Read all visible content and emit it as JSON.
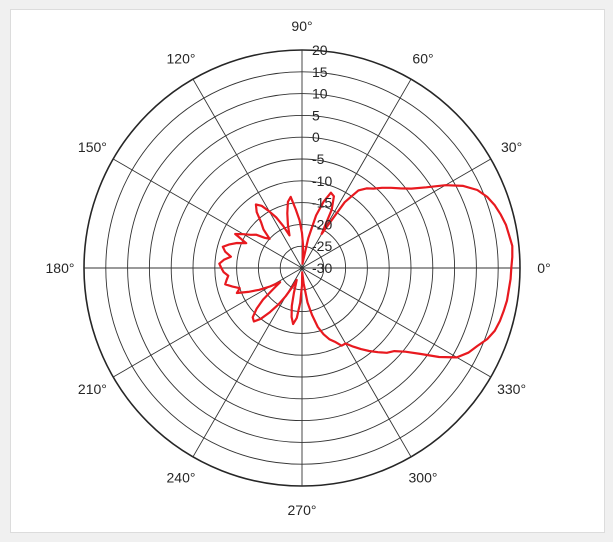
{
  "chart_data": {
    "type": "line",
    "projection": "polar",
    "title": "",
    "angle_ticks": [
      0,
      30,
      60,
      90,
      120,
      150,
      180,
      210,
      240,
      270,
      300,
      330
    ],
    "angle_labels": [
      "0°",
      "30°",
      "60°",
      "90°",
      "120°",
      "150°",
      "180°",
      "210°",
      "240°",
      "270°",
      "300°",
      "330°"
    ],
    "r_ticks": [
      -30,
      -25,
      -20,
      -15,
      -10,
      -5,
      0,
      5,
      10,
      15,
      20
    ],
    "r_labels": [
      "-30",
      "-25",
      "-20",
      "-15",
      "-10",
      "-5",
      "0",
      "5",
      "10",
      "15",
      "20"
    ],
    "rlim": [
      -30,
      20
    ],
    "grid": true,
    "series": [
      {
        "color": "#e8191f",
        "theta": [
          0,
          3,
          6,
          9,
          12,
          15,
          18,
          21,
          24,
          27,
          30,
          33,
          36,
          39,
          42,
          45,
          48,
          51,
          54,
          57,
          60,
          63,
          66,
          69,
          72,
          75,
          78,
          81,
          84,
          87,
          90,
          93,
          96,
          99,
          102,
          105,
          108,
          111,
          114,
          117,
          120,
          123,
          126,
          129,
          132,
          135,
          138,
          141,
          144,
          147,
          150,
          153,
          156,
          159,
          162,
          165,
          168,
          171,
          174,
          177,
          180,
          183,
          186,
          189,
          192,
          195,
          198,
          201,
          204,
          207,
          210,
          213,
          216,
          219,
          222,
          225,
          228,
          231,
          234,
          237,
          240,
          243,
          246,
          249,
          252,
          255,
          258,
          261,
          264,
          267,
          270,
          273,
          276,
          279,
          282,
          285,
          288,
          291,
          294,
          297,
          300,
          303,
          306,
          309,
          312,
          315,
          318,
          321,
          324,
          327,
          330,
          333,
          336,
          339,
          342,
          345,
          348,
          351,
          354,
          357,
          360
        ],
        "r": [
          18.0,
          18.3,
          18.5,
          18.1,
          17.8,
          17.2,
          16.5,
          15.5,
          14.0,
          11.5,
          8.0,
          4.0,
          1.0,
          -1.0,
          -2.5,
          -4.0,
          -5.5,
          -6.5,
          -8.0,
          -12.0,
          -21.0,
          -15.0,
          -12.0,
          -11.5,
          -14.0,
          -17.5,
          -23.0,
          -28.0,
          -29.0,
          -25.0,
          -22.0,
          -19.0,
          -16.5,
          -13.5,
          -14.5,
          -17.0,
          -19.5,
          -22.0,
          -19.5,
          -17.0,
          -15.0,
          -13.0,
          -12.0,
          -13.5,
          -16.0,
          -17.5,
          -20.0,
          -19.0,
          -17.0,
          -16.0,
          -14.5,
          -12.8,
          -16.0,
          -14.0,
          -12.5,
          -11.2,
          -12.0,
          -13.5,
          -12.0,
          -11.0,
          -11.5,
          -12.0,
          -13.0,
          -12.5,
          -12.0,
          -13.5,
          -15.0,
          -14.0,
          -16.5,
          -19.0,
          -21.5,
          -24.0,
          -22.0,
          -18.5,
          -16.0,
          -14.0,
          -13.5,
          -15.0,
          -17.5,
          -20.0,
          -22.5,
          -25.0,
          -27.0,
          -26.0,
          -24.0,
          -21.0,
          -18.5,
          -17.0,
          -18.5,
          -22.0,
          -26.0,
          -29.0,
          -26.5,
          -22.0,
          -19.0,
          -16.0,
          -14.0,
          -12.5,
          -11.5,
          -10.0,
          -10.0,
          -8.5,
          -7.0,
          -5.5,
          -4.0,
          -2.5,
          -1.5,
          0.5,
          3.5,
          7.5,
          11.0,
          12.8,
          14.0,
          15.5,
          16.5,
          17.0,
          17.3,
          17.6,
          17.7,
          17.9,
          18.0
        ]
      }
    ]
  }
}
